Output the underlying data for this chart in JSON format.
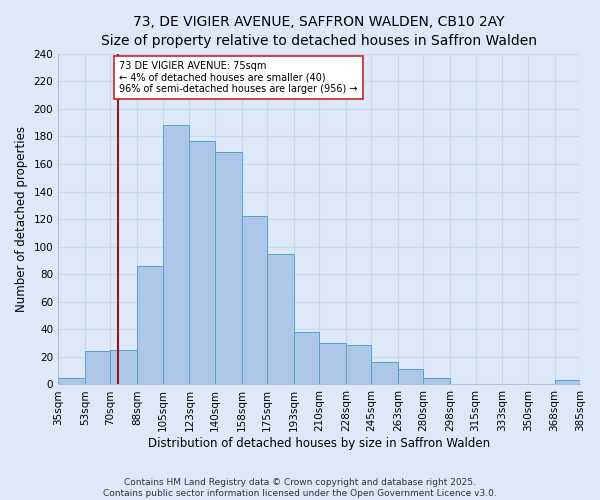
{
  "title": "73, DE VIGIER AVENUE, SAFFRON WALDEN, CB10 2AY",
  "subtitle": "Size of property relative to detached houses in Saffron Walden",
  "xlabel": "Distribution of detached houses by size in Saffron Walden",
  "ylabel": "Number of detached properties",
  "bin_edges": [
    35,
    53,
    70,
    88,
    105,
    123,
    140,
    158,
    175,
    193,
    210,
    228,
    245,
    263,
    280,
    298,
    315,
    333,
    350,
    368,
    385
  ],
  "bar_heights": [
    5,
    24,
    25,
    86,
    188,
    177,
    169,
    122,
    95,
    38,
    30,
    29,
    16,
    11,
    5,
    0,
    0,
    0,
    0,
    3
  ],
  "bar_color": "#aec6e8",
  "bar_edge_color": "#5a9fd4",
  "reference_line_x": 75,
  "reference_line_color": "#8b1a1a",
  "ylim": [
    0,
    240
  ],
  "yticks": [
    0,
    20,
    40,
    60,
    80,
    100,
    120,
    140,
    160,
    180,
    200,
    220,
    240
  ],
  "annotation_line1": "73 DE VIGIER AVENUE: 75sqm",
  "annotation_line2": "← 4% of detached houses are smaller (40)",
  "annotation_line3": "96% of semi-detached houses are larger (956) →",
  "background_color": "#dde8f8",
  "grid_color": "#c8d8ee",
  "footer_line1": "Contains HM Land Registry data © Crown copyright and database right 2025.",
  "footer_line2": "Contains public sector information licensed under the Open Government Licence v3.0.",
  "title_fontsize": 10,
  "xlabel_fontsize": 8.5,
  "ylabel_fontsize": 8.5,
  "tick_fontsize": 7.5,
  "footer_fontsize": 6.5
}
